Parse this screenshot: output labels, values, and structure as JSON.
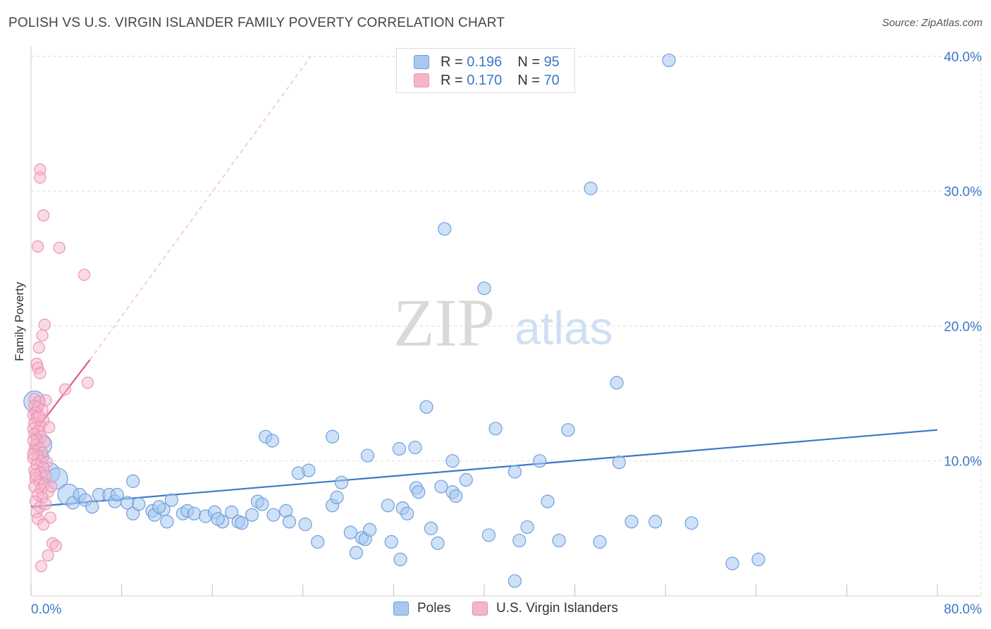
{
  "title": "POLISH VS U.S. VIRGIN ISLANDER FAMILY POVERTY CORRELATION CHART",
  "source": "Source: ZipAtlas.com",
  "watermark": {
    "zip": "ZIP",
    "atlas": "atlas"
  },
  "colors": {
    "blue": "#3c78c8",
    "blue_fill": "#a8c8f0",
    "pink": "#e8588c",
    "pink_fill": "#f5b5cb"
  },
  "stats": {
    "rows": [
      {
        "r_label": "R =",
        "r_value": "0.196",
        "n_label": "N =",
        "n_value": "95"
      },
      {
        "r_label": "R =",
        "r_value": "0.170",
        "n_label": "N =",
        "n_value": "70"
      }
    ]
  },
  "legend": {
    "items": [
      {
        "label": "Poles"
      },
      {
        "label": "U.S. Virgin Islanders"
      }
    ]
  },
  "chart_data": {
    "type": "scatter",
    "xlabel": "",
    "ylabel": "Family Poverty",
    "xlim": [
      0,
      80
    ],
    "ylim": [
      0,
      40
    ],
    "x_tick_labels": [
      "0.0%",
      "80.0%"
    ],
    "y_tick_labels": [
      "10.0%",
      "20.0%",
      "30.0%",
      "40.0%"
    ],
    "y_ticks": [
      10,
      20,
      30,
      40
    ],
    "x_minor_ticks": [
      0,
      8,
      16,
      24,
      32,
      40,
      48,
      56,
      64,
      72,
      80
    ],
    "series": [
      {
        "name": "Poles",
        "color": "#3c78c8",
        "trend": {
          "x": [
            0,
            80
          ],
          "y": [
            6.6,
            12.3
          ],
          "dashed_extension": false
        },
        "points": [
          [
            56.3,
            39.7
          ],
          [
            49.4,
            30.2
          ],
          [
            36.5,
            27.2
          ],
          [
            40.0,
            22.8
          ],
          [
            51.7,
            15.8
          ],
          [
            34.9,
            14.0
          ],
          [
            41.0,
            12.4
          ],
          [
            47.4,
            12.3
          ],
          [
            20.7,
            11.8
          ],
          [
            21.3,
            11.5
          ],
          [
            26.6,
            11.8
          ],
          [
            32.5,
            10.9
          ],
          [
            33.9,
            11.0
          ],
          [
            29.7,
            10.4
          ],
          [
            37.2,
            10.0
          ],
          [
            44.9,
            10.0
          ],
          [
            51.9,
            9.9
          ],
          [
            0.3,
            14.4
          ],
          [
            0.9,
            11.2
          ],
          [
            1.6,
            9.1
          ],
          [
            2.3,
            8.7
          ],
          [
            3.3,
            7.5
          ],
          [
            3.7,
            6.9
          ],
          [
            4.3,
            7.5
          ],
          [
            4.8,
            7.1
          ],
          [
            5.4,
            6.6
          ],
          [
            6.0,
            7.5
          ],
          [
            6.9,
            7.5
          ],
          [
            7.4,
            7.0
          ],
          [
            7.6,
            7.5
          ],
          [
            8.5,
            6.9
          ],
          [
            9.0,
            6.1
          ],
          [
            9.0,
            8.5
          ],
          [
            9.5,
            6.8
          ],
          [
            10.7,
            6.3
          ],
          [
            10.9,
            6.0
          ],
          [
            11.7,
            6.4
          ],
          [
            12.0,
            5.5
          ],
          [
            12.4,
            7.1
          ],
          [
            13.4,
            6.1
          ],
          [
            13.8,
            6.3
          ],
          [
            14.4,
            6.1
          ],
          [
            15.4,
            5.9
          ],
          [
            16.2,
            6.2
          ],
          [
            16.9,
            5.5
          ],
          [
            17.7,
            6.2
          ],
          [
            18.3,
            5.5
          ],
          [
            18.6,
            5.4
          ],
          [
            19.5,
            6.0
          ],
          [
            20.0,
            7.0
          ],
          [
            20.4,
            6.8
          ],
          [
            21.4,
            6.0
          ],
          [
            22.5,
            6.3
          ],
          [
            22.8,
            5.5
          ],
          [
            23.6,
            9.1
          ],
          [
            24.2,
            5.3
          ],
          [
            24.5,
            9.3
          ],
          [
            25.3,
            4.0
          ],
          [
            26.6,
            6.7
          ],
          [
            27.0,
            7.3
          ],
          [
            27.4,
            8.4
          ],
          [
            28.2,
            4.7
          ],
          [
            28.7,
            3.2
          ],
          [
            29.2,
            4.3
          ],
          [
            29.5,
            4.2
          ],
          [
            29.9,
            4.9
          ],
          [
            31.5,
            6.7
          ],
          [
            31.8,
            4.0
          ],
          [
            32.6,
            2.7
          ],
          [
            32.8,
            6.5
          ],
          [
            33.2,
            6.1
          ],
          [
            34.0,
            8.0
          ],
          [
            34.2,
            7.7
          ],
          [
            35.3,
            5.0
          ],
          [
            35.9,
            3.9
          ],
          [
            37.2,
            7.7
          ],
          [
            37.5,
            7.4
          ],
          [
            38.4,
            8.6
          ],
          [
            40.4,
            4.5
          ],
          [
            42.7,
            1.1
          ],
          [
            42.7,
            9.2
          ],
          [
            43.1,
            4.1
          ],
          [
            43.8,
            5.1
          ],
          [
            45.6,
            7.0
          ],
          [
            46.6,
            4.1
          ],
          [
            50.2,
            4.0
          ],
          [
            53.0,
            5.5
          ],
          [
            55.1,
            5.5
          ],
          [
            58.3,
            5.4
          ],
          [
            61.9,
            2.4
          ],
          [
            64.2,
            2.7
          ],
          [
            1.0,
            10.3
          ],
          [
            36.2,
            8.1
          ],
          [
            16.5,
            5.7
          ],
          [
            11.3,
            6.6
          ]
        ]
      },
      {
        "name": "U.S. Virgin Islanders",
        "color": "#e8588c",
        "trend": {
          "x": [
            0,
            5.2
          ],
          "y": [
            11.8,
            17.5
          ],
          "dashed_extension": true,
          "extension_to": [
            24.7,
            40
          ]
        },
        "points": [
          [
            0.8,
            31.6
          ],
          [
            0.8,
            31.0
          ],
          [
            1.1,
            28.2
          ],
          [
            0.6,
            25.9
          ],
          [
            2.5,
            25.8
          ],
          [
            4.7,
            23.8
          ],
          [
            1.2,
            20.1
          ],
          [
            1.0,
            19.3
          ],
          [
            0.7,
            18.4
          ],
          [
            0.5,
            17.2
          ],
          [
            0.6,
            16.9
          ],
          [
            0.8,
            16.5
          ],
          [
            5.0,
            15.8
          ],
          [
            3.0,
            15.3
          ],
          [
            0.3,
            14.6
          ],
          [
            0.7,
            14.4
          ],
          [
            1.3,
            14.5
          ],
          [
            0.3,
            14.1
          ],
          [
            0.6,
            14.0
          ],
          [
            1.0,
            13.8
          ],
          [
            0.4,
            13.6
          ],
          [
            0.2,
            13.4
          ],
          [
            0.5,
            13.2
          ],
          [
            1.1,
            13.0
          ],
          [
            0.3,
            12.8
          ],
          [
            0.8,
            12.6
          ],
          [
            0.2,
            12.4
          ],
          [
            0.6,
            12.2
          ],
          [
            0.3,
            12.0
          ],
          [
            0.9,
            11.8
          ],
          [
            0.5,
            11.6
          ],
          [
            1.2,
            11.4
          ],
          [
            0.4,
            11.2
          ],
          [
            0.7,
            11.0
          ],
          [
            0.3,
            10.8
          ],
          [
            1.0,
            10.6
          ],
          [
            0.6,
            10.4
          ],
          [
            0.2,
            10.2
          ],
          [
            0.9,
            10.0
          ],
          [
            1.4,
            9.9
          ],
          [
            0.5,
            9.7
          ],
          [
            1.1,
            9.5
          ],
          [
            0.3,
            9.3
          ],
          [
            0.8,
            9.1
          ],
          [
            1.3,
            8.9
          ],
          [
            0.4,
            8.7
          ],
          [
            0.7,
            8.5
          ],
          [
            1.2,
            8.3
          ],
          [
            0.3,
            8.1
          ],
          [
            0.9,
            7.9
          ],
          [
            1.5,
            7.7
          ],
          [
            0.6,
            7.5
          ],
          [
            1.0,
            7.3
          ],
          [
            0.4,
            7.0
          ],
          [
            0.8,
            6.6
          ],
          [
            0.5,
            6.2
          ],
          [
            1.7,
            5.8
          ],
          [
            0.6,
            5.7
          ],
          [
            1.1,
            5.3
          ],
          [
            1.9,
            3.9
          ],
          [
            2.2,
            3.7
          ],
          [
            1.5,
            3.0
          ],
          [
            0.9,
            2.2
          ],
          [
            1.3,
            6.8
          ],
          [
            0.2,
            11.5
          ],
          [
            1.6,
            12.5
          ],
          [
            0.4,
            9.0
          ],
          [
            1.8,
            8.1
          ],
          [
            0.7,
            13.3
          ],
          [
            0.2,
            10.5
          ]
        ]
      }
    ],
    "large_points": {
      "Poles": [
        [
          0.3,
          14.4
        ],
        [
          0.9,
          11.2
        ],
        [
          1.6,
          9.1
        ],
        [
          2.3,
          8.7
        ],
        [
          3.3,
          7.5
        ]
      ]
    }
  }
}
